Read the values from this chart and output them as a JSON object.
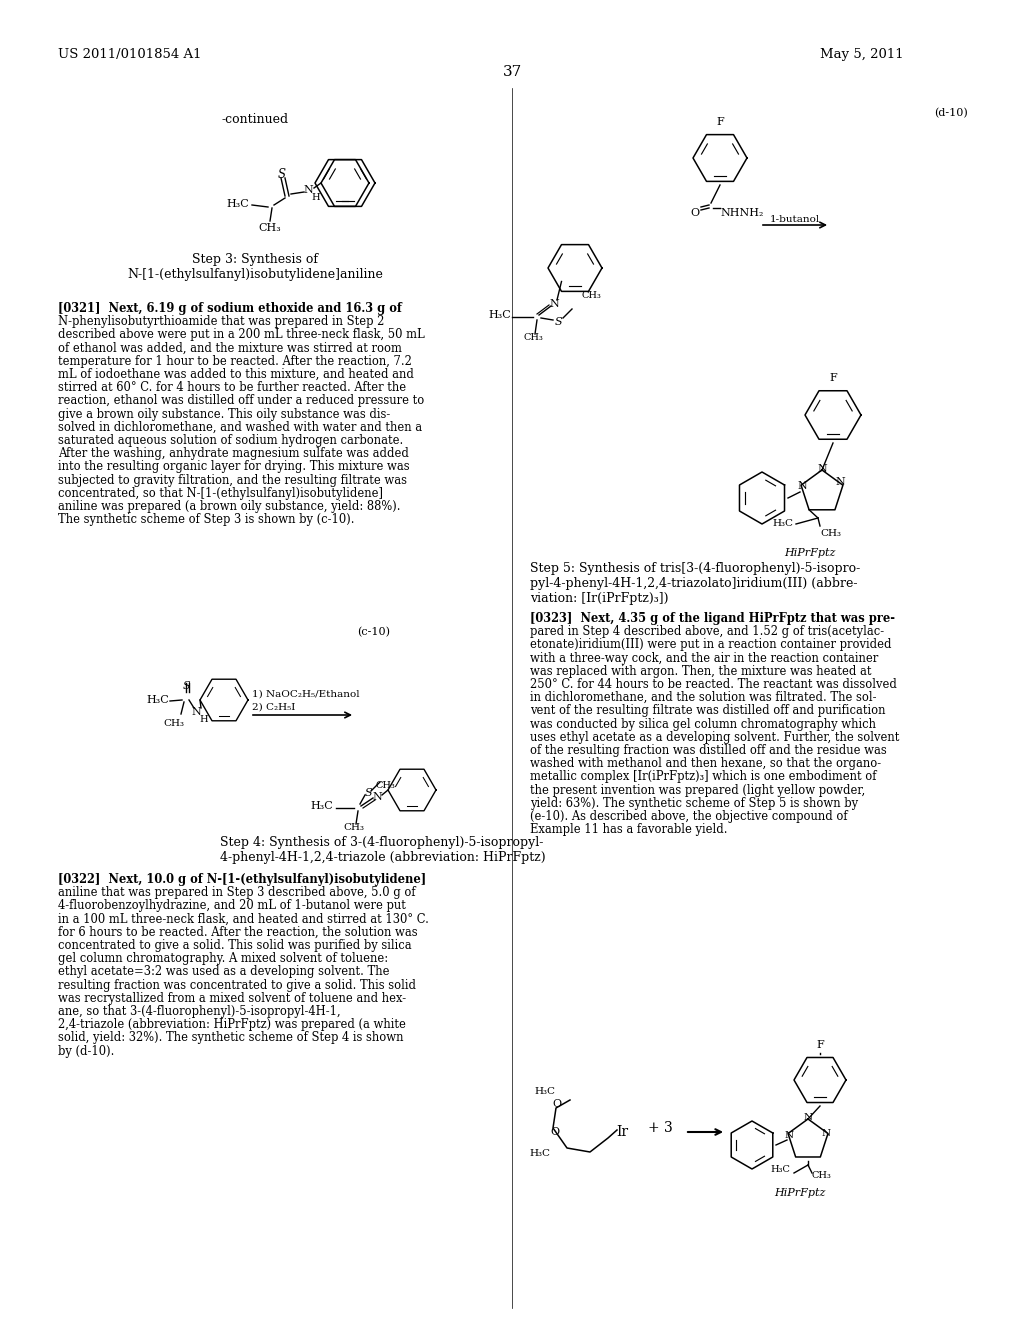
{
  "background_color": "#ffffff",
  "page_number": "37",
  "header_left": "US 2011/0101854 A1",
  "header_right": "May 5, 2011",
  "continued_text": "-continued",
  "label_d10_top": "(d-10)",
  "label_c10": "(c-10)",
  "step3_title_line1": "Step 3: Synthesis of",
  "step3_title_line2": "N-[1-(ethylsulfanyl)isobutylidene]aniline",
  "step4_title_line1": "Step 4: Synthesis of 3-(4-fluorophenyl)-5-isopropyl-",
  "step4_title_line2": "4-phenyl-4H-1,2,4-triazole (abbreviation: HiPrFptz)",
  "step5_title_line1": "Step 5: Synthesis of tris[3-(4-fluorophenyl)-5-isopro-",
  "step5_title_line2": "pyl-4-phenyl-4H-1,2,4-triazolato]iridium(III) (abbre-",
  "step5_title_line3": "viation: [Ir(iPrFptz)₃])",
  "reagent_c10_1": "1) NaOC₂H₅/Ethanol",
  "reagent_c10_2": "2) C₂H₅I",
  "reagent_d10": "1-butanol",
  "hiprfptz_label": "HiPrFptz",
  "para_0321_lines": [
    "[0321]  Next, 6.19 g of sodium ethoxide and 16.3 g of",
    "N-phenylisobutyrthioamide that was prepared in Step 2",
    "described above were put in a 200 mL three-neck flask, 50 mL",
    "of ethanol was added, and the mixture was stirred at room",
    "temperature for 1 hour to be reacted. After the reaction, 7.2",
    "mL of iodoethane was added to this mixture, and heated and",
    "stirred at 60° C. for 4 hours to be further reacted. After the",
    "reaction, ethanol was distilled off under a reduced pressure to",
    "give a brown oily substance. This oily substance was dis-",
    "solved in dichloromethane, and washed with water and then a",
    "saturated aqueous solution of sodium hydrogen carbonate.",
    "After the washing, anhydrate magnesium sulfate was added",
    "into the resulting organic layer for drying. This mixture was",
    "subjected to gravity filtration, and the resulting filtrate was",
    "concentrated, so that N-[1-(ethylsulfanyl)isobutylidene]",
    "aniline was prepared (a brown oily substance, yield: 88%).",
    "The synthetic scheme of Step 3 is shown by (c-10)."
  ],
  "para_0322_lines": [
    "[0322]  Next, 10.0 g of N-[1-(ethylsulfanyl)isobutylidene]",
    "aniline that was prepared in Step 3 described above, 5.0 g of",
    "4-fluorobenzoylhydrazine, and 20 mL of 1-butanol were put",
    "in a 100 mL three-neck flask, and heated and stirred at 130° C.",
    "for 6 hours to be reacted. After the reaction, the solution was",
    "concentrated to give a solid. This solid was purified by silica",
    "gel column chromatography. A mixed solvent of toluene:",
    "ethyl acetate=3:2 was used as a developing solvent. The",
    "resulting fraction was concentrated to give a solid. This solid",
    "was recrystallized from a mixed solvent of toluene and hex-",
    "ane, so that 3-(4-fluorophenyl)-5-isopropyl-4H-1,",
    "2,4-triazole (abbreviation: HiPrFptz) was prepared (a white",
    "solid, yield: 32%). The synthetic scheme of Step 4 is shown",
    "by (d-10)."
  ],
  "para_0323_lines": [
    "[0323]  Next, 4.35 g of the ligand HiPrFptz that was pre-",
    "pared in Step 4 described above, and 1.52 g of tris(acetylac-",
    "etonate)iridium(III) were put in a reaction container provided",
    "with a three-way cock, and the air in the reaction container",
    "was replaced with argon. Then, the mixture was heated at",
    "250° C. for 44 hours to be reacted. The reactant was dissolved",
    "in dichloromethane, and the solution was filtrated. The sol-",
    "vent of the resulting filtrate was distilled off and purification",
    "was conducted by silica gel column chromatography which",
    "uses ethyl acetate as a developing solvent. Further, the solvent",
    "of the resulting fraction was distilled off and the residue was",
    "washed with methanol and then hexane, so that the organo-",
    "metallic complex [Ir(iPrFptz)₃] which is one embodiment of",
    "the present invention was prepared (light yellow powder,",
    "yield: 63%). The synthetic scheme of Step 5 is shown by",
    "(e-10). As described above, the objective compound of",
    "Example 11 has a favorable yield."
  ]
}
